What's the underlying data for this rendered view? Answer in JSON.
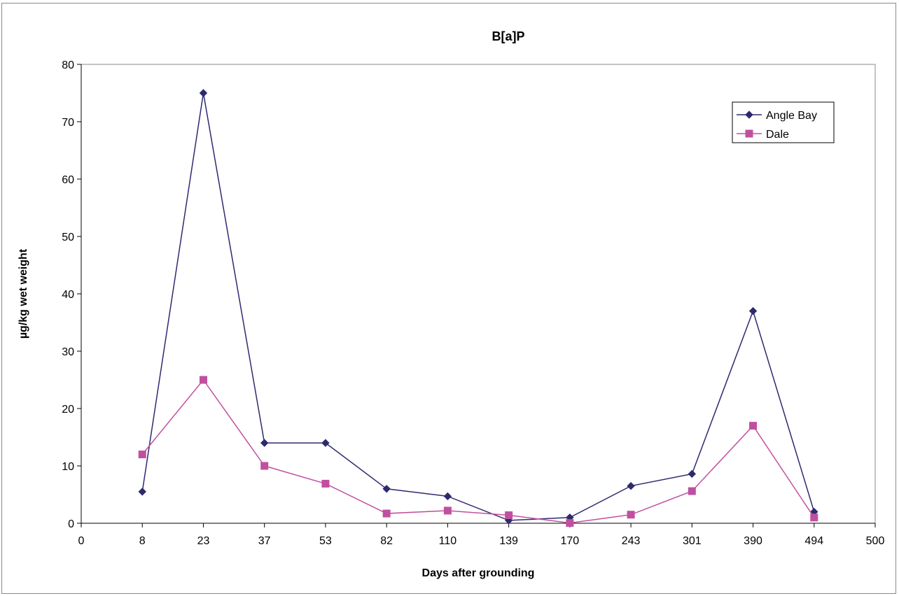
{
  "chart_data": {
    "type": "line",
    "title": "B[a]P",
    "xlabel": "Days after grounding",
    "ylabel": "µg/kg wet weight",
    "x_tick_labels": [
      "0",
      "8",
      "23",
      "37",
      "53",
      "82",
      "110",
      "139",
      "170",
      "243",
      "301",
      "390",
      "494",
      "500"
    ],
    "categories": [
      "8",
      "23",
      "37",
      "53",
      "82",
      "110",
      "139",
      "170",
      "243",
      "301",
      "390",
      "494"
    ],
    "ylim": [
      0,
      80
    ],
    "y_ticks": [
      0,
      10,
      20,
      30,
      40,
      50,
      60,
      70,
      80
    ],
    "grid": false,
    "legend_position": "top-right",
    "series": [
      {
        "name": "Angle Bay",
        "color": "#2e2a6e",
        "marker": "diamond",
        "values": [
          5.5,
          75,
          14,
          14,
          6,
          4.7,
          0.5,
          1,
          6.5,
          8.6,
          37,
          2
        ]
      },
      {
        "name": "Dale",
        "color": "#c0509f",
        "marker": "square",
        "values": [
          12,
          25,
          10,
          6.9,
          1.7,
          2.2,
          1.4,
          0.05,
          1.5,
          5.6,
          17,
          1
        ]
      }
    ]
  }
}
